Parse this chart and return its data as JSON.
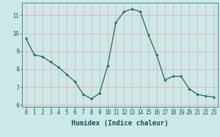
{
  "x": [
    0,
    1,
    2,
    3,
    4,
    5,
    6,
    7,
    8,
    9,
    10,
    11,
    12,
    13,
    14,
    15,
    16,
    17,
    18,
    19,
    20,
    21,
    22,
    23
  ],
  "y": [
    9.7,
    8.8,
    8.7,
    8.4,
    8.1,
    7.7,
    7.3,
    6.6,
    6.35,
    6.65,
    8.2,
    10.6,
    11.2,
    11.35,
    11.2,
    9.9,
    8.8,
    7.4,
    7.6,
    7.6,
    6.9,
    6.6,
    6.5,
    6.45
  ],
  "line_color": "#2e6b5e",
  "marker": "D",
  "marker_size": 1.8,
  "bg_color": "#cce8e8",
  "grid_color": "#e8b0b0",
  "xlabel": "Humidex (Indice chaleur)",
  "xlabel_fontsize": 7,
  "xlim": [
    -0.5,
    23.5
  ],
  "ylim": [
    5.9,
    11.7
  ],
  "yticks": [
    6,
    7,
    8,
    9,
    10,
    11
  ],
  "xticks": [
    0,
    1,
    2,
    3,
    4,
    5,
    6,
    7,
    8,
    9,
    10,
    11,
    12,
    13,
    14,
    15,
    16,
    17,
    18,
    19,
    20,
    21,
    22,
    23
  ],
  "tick_fontsize": 5.5,
  "linewidth": 1.0
}
